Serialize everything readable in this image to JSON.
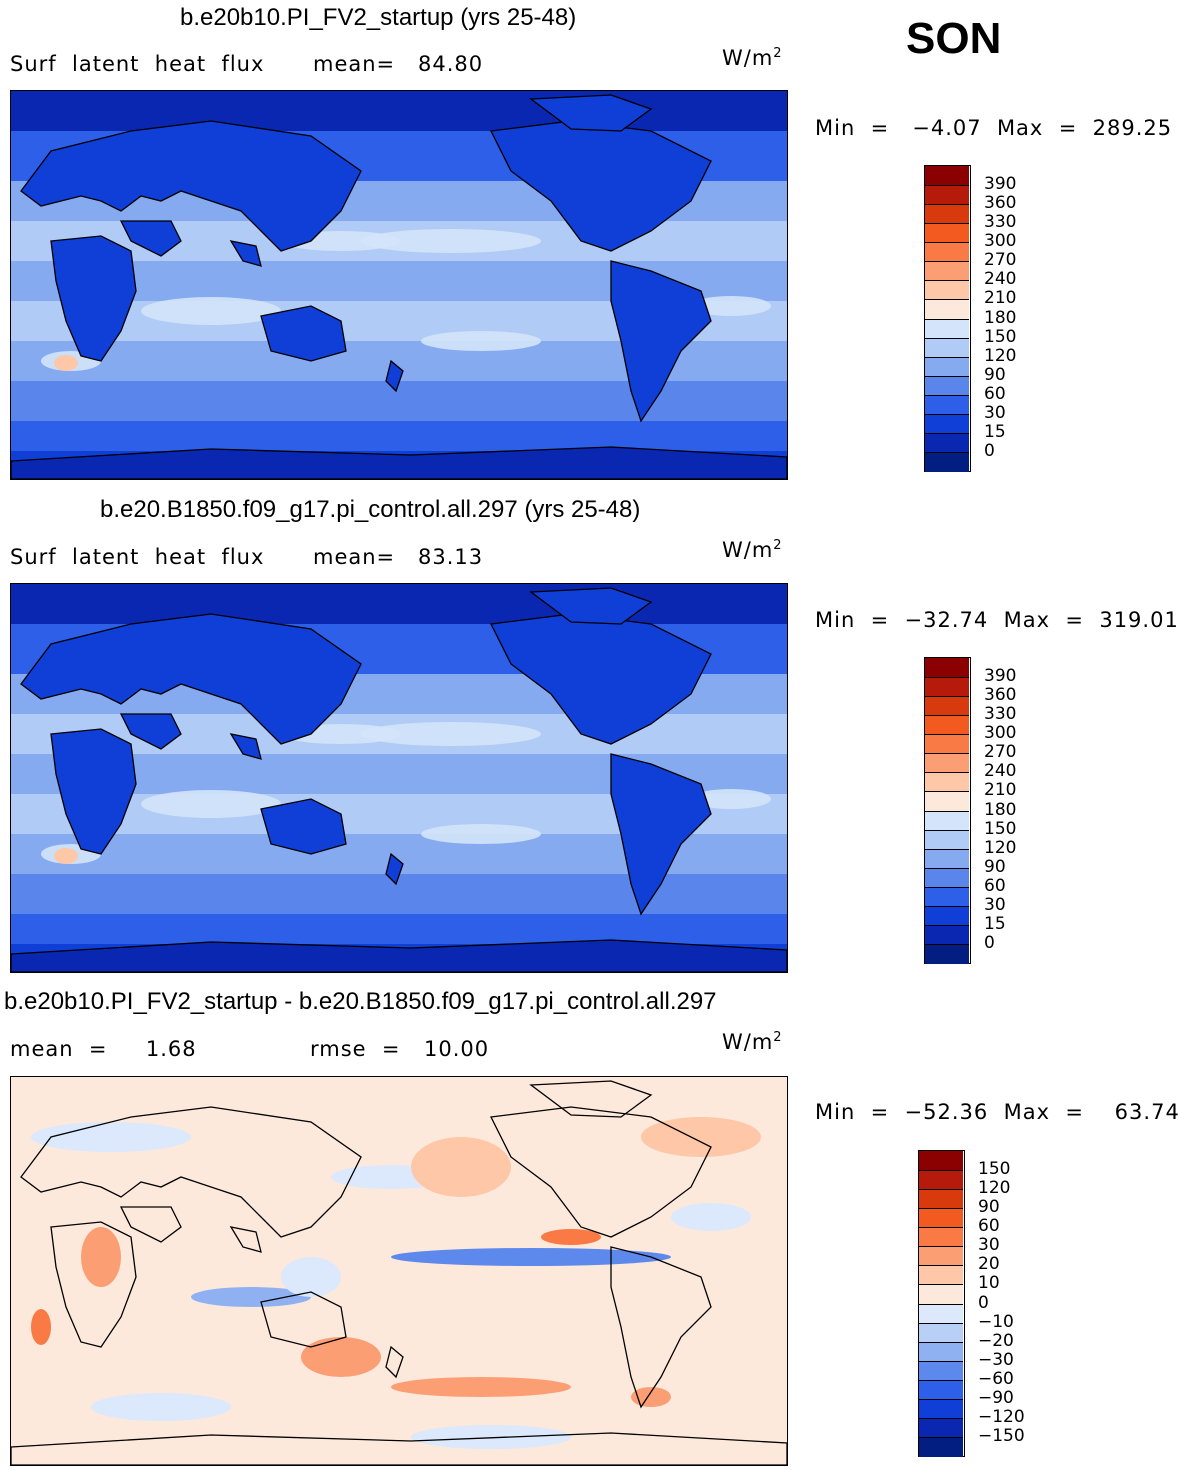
{
  "season": "SON",
  "panels": [
    {
      "title": "b.e20b10.PI_FV2_startup (yrs 25-48)",
      "left_label": "Surf  latent  heat  flux",
      "stat_label": "mean=",
      "stat_value": "84.80",
      "unit_base": "W/m",
      "unit_exp": "2",
      "min_text": "Min  =   −4.07  Max  =  289.25",
      "kind": "field",
      "levels": [
        "390",
        "360",
        "330",
        "300",
        "270",
        "240",
        "210",
        "180",
        "150",
        "120",
        "90",
        "60",
        "30",
        "15",
        "0"
      ],
      "colors": [
        "#8b0000",
        "#b51a0a",
        "#d93a0d",
        "#f25a1f",
        "#f97a45",
        "#fc9e74",
        "#fdc7a8",
        "#fde9dc",
        "#d4e4fa",
        "#b0cbf5",
        "#86aaf0",
        "#5a86ec",
        "#2d5fe8",
        "#0f3fd6",
        "#0a27b2",
        "#021e80"
      ]
    },
    {
      "title": "b.e20.B1850.f09_g17.pi_control.all.297 (yrs 25-48)",
      "left_label": "Surf  latent  heat  flux",
      "stat_label": "mean=",
      "stat_value": "83.13",
      "unit_base": "W/m",
      "unit_exp": "2",
      "min_text": "Min  =  −32.74  Max  =  319.01",
      "kind": "field",
      "levels": [
        "390",
        "360",
        "330",
        "300",
        "270",
        "240",
        "210",
        "180",
        "150",
        "120",
        "90",
        "60",
        "30",
        "15",
        "0"
      ],
      "colors": [
        "#8b0000",
        "#b51a0a",
        "#d93a0d",
        "#f25a1f",
        "#f97a45",
        "#fc9e74",
        "#fdc7a8",
        "#fde9dc",
        "#d4e4fa",
        "#b0cbf5",
        "#86aaf0",
        "#5a86ec",
        "#2d5fe8",
        "#0f3fd6",
        "#0a27b2",
        "#021e80"
      ]
    },
    {
      "title": "b.e20b10.PI_FV2_startup - b.e20.B1850.f09_g17.pi_control.all.297",
      "left_label": "mean  =     1.68",
      "stat_label": "rmse  =",
      "stat_value": "10.00",
      "unit_base": "W/m",
      "unit_exp": "2",
      "min_text": "Min  =  −52.36  Max  =    63.74",
      "kind": "diff",
      "levels": [
        "150",
        "120",
        "90",
        "60",
        "30",
        "20",
        "10",
        "0",
        "−10",
        "−20",
        "−30",
        "−60",
        "−90",
        "−120",
        "−150"
      ],
      "colors": [
        "#8b0000",
        "#b51a0a",
        "#d93a0d",
        "#f25a1f",
        "#f97a45",
        "#fc9e74",
        "#fdc7a8",
        "#fde9dc",
        "#dce8fb",
        "#b9d0f6",
        "#8fb1f1",
        "#5d88ec",
        "#2d5fe8",
        "#0f3fd6",
        "#0a27b2",
        "#021e80"
      ]
    }
  ]
}
